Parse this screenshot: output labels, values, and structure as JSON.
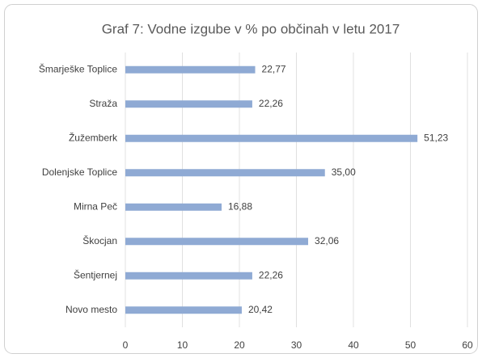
{
  "chart_data": {
    "type": "bar",
    "orientation": "horizontal",
    "title": "Graf 7: Vodne izgube v % po občinah v letu 2017",
    "categories": [
      "Šmarješke Toplice",
      "Straža",
      "Žužemberk",
      "Dolenjske Toplice",
      "Mirna Peč",
      "Škocjan",
      "Šentjernej",
      "Novo mesto"
    ],
    "values": [
      22.77,
      22.26,
      51.23,
      35.0,
      16.88,
      32.06,
      22.26,
      20.42
    ],
    "value_labels": [
      "22,77",
      "22,26",
      "51,23",
      "35,00",
      "16,88",
      "32,06",
      "22,26",
      "20,42"
    ],
    "color": "#8faad4",
    "xlim": [
      0,
      60
    ],
    "xticks": [
      0,
      10,
      20,
      30,
      40,
      50,
      60
    ],
    "grid": true
  }
}
